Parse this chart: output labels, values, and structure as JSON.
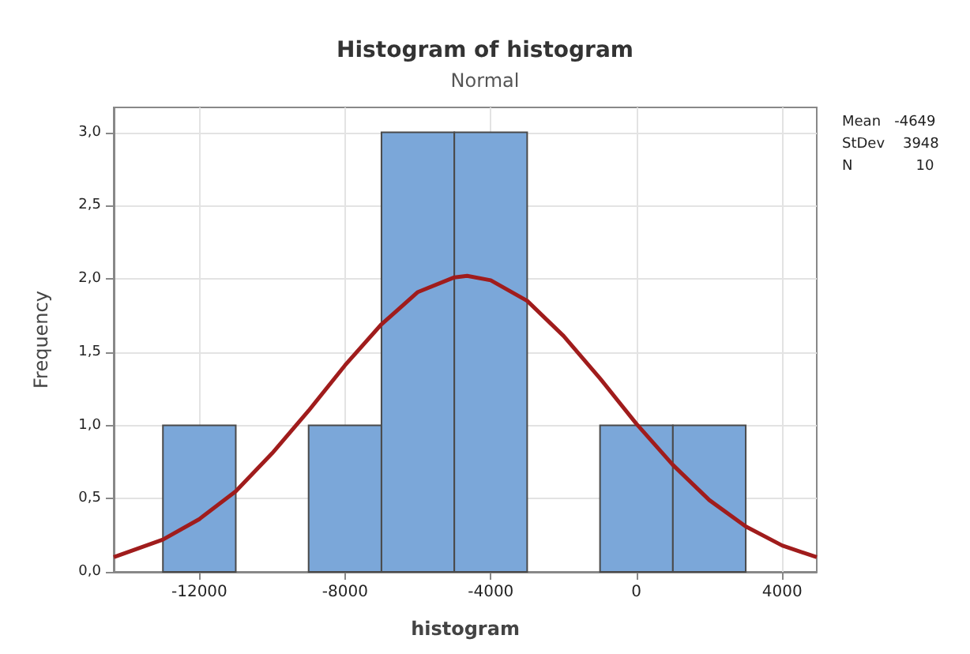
{
  "chart_data": {
    "type": "histogram",
    "title": "Histogram of histogram",
    "subtitle": "Normal",
    "xlabel": "histogram",
    "ylabel": "Frequency",
    "bins": [
      -13000,
      -11000,
      -9000,
      -7000,
      -5000,
      -3000,
      -1000,
      1000,
      3000
    ],
    "values": [
      1,
      0,
      1,
      3,
      3,
      0,
      1,
      1
    ],
    "color": "#7ba7d9",
    "series": [
      {
        "type": "line",
        "color": "#a01c1c",
        "x": [
          -14350,
          -13000,
          -12000,
          -11000,
          -10000,
          -9000,
          -8000,
          -7000,
          -6000,
          -5000,
          -4649,
          -4000,
          -3000,
          -2000,
          -1000,
          0,
          1000,
          2000,
          3000,
          4000,
          4950
        ],
        "values": [
          0.1,
          0.22,
          0.36,
          0.55,
          0.81,
          1.1,
          1.41,
          1.69,
          1.91,
          2.01,
          2.02,
          1.99,
          1.85,
          1.61,
          1.32,
          1.01,
          0.73,
          0.49,
          0.31,
          0.18,
          0.1
        ]
      }
    ],
    "xlim": [
      -14350,
      4950
    ],
    "xticks": [
      -12000,
      -8000,
      -4000,
      0,
      4000
    ],
    "ylim": [
      0,
      3.17
    ],
    "yticks": [
      {
        "value": 0,
        "label": "0,0"
      },
      {
        "value": 0.5,
        "label": "0,5"
      },
      {
        "value": 1,
        "label": "1,0"
      },
      {
        "value": 1.5,
        "label": "1,5"
      },
      {
        "value": 2,
        "label": "2,0"
      },
      {
        "value": 2.5,
        "label": "2,5"
      },
      {
        "value": 3,
        "label": "3,0"
      }
    ],
    "grid": true,
    "annotations": [
      "Mean   -4649",
      "StDev    3948",
      "N              10"
    ]
  }
}
